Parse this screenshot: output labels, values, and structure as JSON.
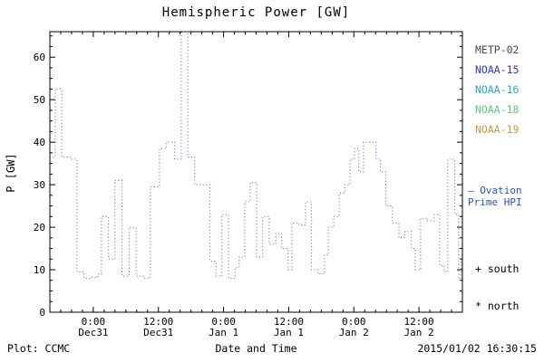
{
  "title": "Hemispheric Power [GW]",
  "footer": {
    "left": "Plot: CCMC",
    "right": "2015/01/02 16:30:15"
  },
  "legend": {
    "items": [
      {
        "label": "METP-02",
        "color": "#4a4a42"
      },
      {
        "label": "NOAA-15",
        "color": "#2a35c0"
      },
      {
        "label": "NOAA-16",
        "color": "#23aac8"
      },
      {
        "label": "NOAA-18",
        "color": "#63c47e"
      },
      {
        "label": "NOAA-19",
        "color": "#cc9740"
      }
    ]
  },
  "side_notes": {
    "ovation_line1": "— Ovation",
    "ovation_line2": "Prime HPI",
    "ovation_color": "#2a50c8",
    "south": "+ south",
    "north": "* north"
  },
  "chart_data": {
    "type": "line",
    "step": true,
    "line_style": "dotted",
    "line_color": "#3c64bb",
    "title": "Hemispheric Power [GW]",
    "xlabel": "Date and Time",
    "ylabel": "P [GW]",
    "xlim_hours": [
      0,
      76
    ],
    "ylim": [
      0,
      66
    ],
    "grid": false,
    "y_ticks": [
      0,
      10,
      20,
      30,
      40,
      50,
      60
    ],
    "x_ticks": [
      {
        "t": 8,
        "time": "0:00",
        "date": "Dec31"
      },
      {
        "t": 20,
        "time": "12:00",
        "date": "Dec31"
      },
      {
        "t": 32,
        "time": "0:00",
        "date": "Jan 1"
      },
      {
        "t": 44,
        "time": "12:00",
        "date": "Jan 1"
      },
      {
        "t": 56,
        "time": "0:00",
        "date": "Jan 2"
      },
      {
        "t": 68,
        "time": "12:00",
        "date": "Jan 2"
      }
    ],
    "points": [
      [
        0.0,
        36.5
      ],
      [
        1.0,
        52.5
      ],
      [
        2.2,
        36.5
      ],
      [
        3.8,
        36
      ],
      [
        5.0,
        9.5
      ],
      [
        6.3,
        8
      ],
      [
        7.6,
        8.2
      ],
      [
        8.8,
        9
      ],
      [
        9.5,
        22.5
      ],
      [
        10.8,
        12.5
      ],
      [
        12.0,
        31
      ],
      [
        13.3,
        8.5
      ],
      [
        14.6,
        20
      ],
      [
        15.9,
        8.5
      ],
      [
        17.2,
        8
      ],
      [
        18.5,
        29.5
      ],
      [
        20.2,
        38.5
      ],
      [
        21.5,
        40
      ],
      [
        23.0,
        36
      ],
      [
        24.2,
        66
      ],
      [
        25.4,
        36.5
      ],
      [
        26.7,
        30
      ],
      [
        28.4,
        30
      ],
      [
        29.5,
        12
      ],
      [
        30.6,
        8.5
      ],
      [
        31.7,
        23
      ],
      [
        32.9,
        8
      ],
      [
        34.1,
        10.5
      ],
      [
        34.9,
        13
      ],
      [
        35.9,
        26
      ],
      [
        36.9,
        30.5
      ],
      [
        38.1,
        13
      ],
      [
        39.2,
        22.5
      ],
      [
        40.4,
        16
      ],
      [
        41.6,
        18.5
      ],
      [
        42.7,
        15
      ],
      [
        43.9,
        10
      ],
      [
        44.6,
        21
      ],
      [
        45.9,
        20.5
      ],
      [
        47.1,
        26
      ],
      [
        48.2,
        10
      ],
      [
        49.4,
        9
      ],
      [
        50.6,
        13.5
      ],
      [
        51.3,
        20
      ],
      [
        52.3,
        22.5
      ],
      [
        53.3,
        28
      ],
      [
        54.3,
        30
      ],
      [
        55.3,
        36
      ],
      [
        56.1,
        38.5
      ],
      [
        56.9,
        33
      ],
      [
        57.8,
        40
      ],
      [
        59.3,
        40
      ],
      [
        60.1,
        36
      ],
      [
        60.9,
        33
      ],
      [
        61.9,
        25
      ],
      [
        63.1,
        21
      ],
      [
        64.3,
        17.5
      ],
      [
        65.4,
        19
      ],
      [
        66.6,
        15
      ],
      [
        67.3,
        10
      ],
      [
        68.3,
        22
      ],
      [
        69.6,
        21.5
      ],
      [
        70.8,
        23
      ],
      [
        71.8,
        11
      ],
      [
        72.6,
        9.5
      ],
      [
        73.3,
        36
      ],
      [
        74.6,
        23
      ],
      [
        75.3,
        8
      ],
      [
        75.8,
        13.5
      ]
    ]
  }
}
